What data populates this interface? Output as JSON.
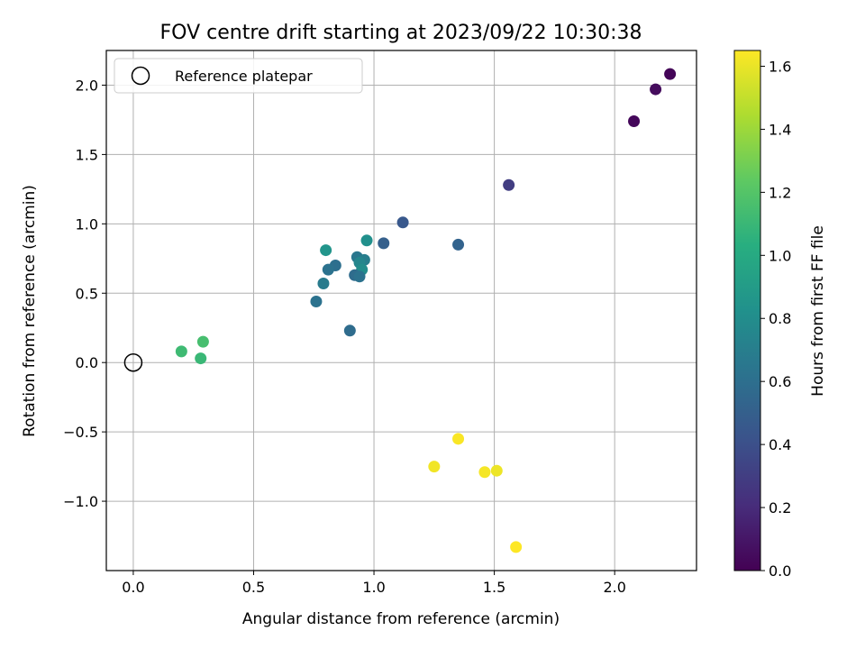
{
  "chart_data": {
    "type": "scatter",
    "title": "FOV centre drift starting at 2023/09/22 10:30:38",
    "xlabel": "Angular distance from reference (arcmin)",
    "ylabel": "Rotation from reference (arcmin)",
    "xlim": [
      -0.112,
      2.34
    ],
    "ylim": [
      -1.5,
      2.25
    ],
    "x_ticks": [
      0.0,
      0.5,
      1.0,
      1.5,
      2.0
    ],
    "x_tick_labels": [
      "0.0",
      "0.5",
      "1.0",
      "1.5",
      "2.0"
    ],
    "y_ticks": [
      -1.0,
      -0.5,
      0.0,
      0.5,
      1.0,
      1.5,
      2.0
    ],
    "y_tick_labels": [
      "−1.0",
      "−0.5",
      "0.0",
      "0.5",
      "1.0",
      "1.5",
      "2.0"
    ],
    "grid": true,
    "legend": {
      "placement": "top-left",
      "entries": [
        "Reference platepar"
      ]
    },
    "reference_point": {
      "x": 0.0,
      "y": 0.0,
      "marker": "open-circle"
    },
    "colorbar": {
      "label": "Hours from first FF file",
      "colormap": "viridis",
      "range": [
        0.0,
        1.65
      ],
      "ticks": [
        0.0,
        0.2,
        0.4,
        0.6,
        0.8,
        1.0,
        1.2,
        1.4,
        1.6
      ],
      "tick_labels": [
        "0.0",
        "0.2",
        "0.4",
        "0.6",
        "0.8",
        "1.0",
        "1.2",
        "1.4",
        "1.6"
      ]
    },
    "points": [
      {
        "x": 2.23,
        "y": 2.08,
        "c": 0.02
      },
      {
        "x": 2.17,
        "y": 1.97,
        "c": 0.05
      },
      {
        "x": 2.08,
        "y": 1.74,
        "c": 0.03
      },
      {
        "x": 1.56,
        "y": 1.28,
        "c": 0.3
      },
      {
        "x": 1.12,
        "y": 1.01,
        "c": 0.45
      },
      {
        "x": 1.04,
        "y": 0.86,
        "c": 0.5
      },
      {
        "x": 1.35,
        "y": 0.85,
        "c": 0.52
      },
      {
        "x": 0.97,
        "y": 0.88,
        "c": 0.82
      },
      {
        "x": 0.8,
        "y": 0.81,
        "c": 0.85
      },
      {
        "x": 0.93,
        "y": 0.76,
        "c": 0.65
      },
      {
        "x": 0.96,
        "y": 0.74,
        "c": 0.7
      },
      {
        "x": 0.94,
        "y": 0.72,
        "c": 0.75
      },
      {
        "x": 0.84,
        "y": 0.7,
        "c": 0.6
      },
      {
        "x": 0.81,
        "y": 0.67,
        "c": 0.62
      },
      {
        "x": 0.95,
        "y": 0.67,
        "c": 0.8
      },
      {
        "x": 0.92,
        "y": 0.63,
        "c": 0.58
      },
      {
        "x": 0.94,
        "y": 0.62,
        "c": 0.62
      },
      {
        "x": 0.79,
        "y": 0.57,
        "c": 0.68
      },
      {
        "x": 0.76,
        "y": 0.44,
        "c": 0.62
      },
      {
        "x": 0.9,
        "y": 0.23,
        "c": 0.58
      },
      {
        "x": 0.29,
        "y": 0.15,
        "c": 1.15
      },
      {
        "x": 0.2,
        "y": 0.08,
        "c": 1.12
      },
      {
        "x": 0.28,
        "y": 0.03,
        "c": 1.1
      },
      {
        "x": 1.35,
        "y": -0.55,
        "c": 1.64
      },
      {
        "x": 1.25,
        "y": -0.75,
        "c": 1.62
      },
      {
        "x": 1.46,
        "y": -0.79,
        "c": 1.63
      },
      {
        "x": 1.51,
        "y": -0.78,
        "c": 1.61
      },
      {
        "x": 1.59,
        "y": -1.33,
        "c": 1.65
      }
    ]
  }
}
